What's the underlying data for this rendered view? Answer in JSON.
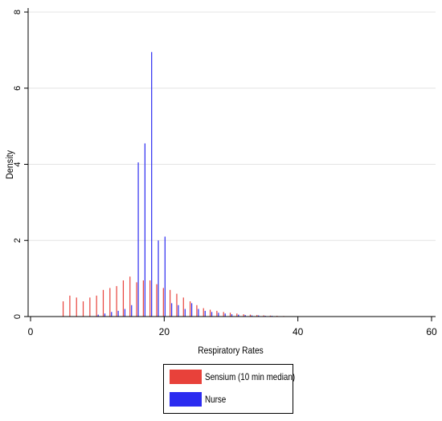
{
  "chart_data": {
    "type": "bar",
    "xlabel": "Respiratory Rates",
    "ylabel": "Density",
    "xlim": [
      0,
      60
    ],
    "ylim": [
      0,
      8
    ],
    "xticks": [
      0,
      20,
      40,
      60
    ],
    "yticks": [
      0,
      2,
      4,
      6,
      8
    ],
    "legend_position": "bottom",
    "series": [
      {
        "name": "Sensium (10 min median)",
        "color": "#e8413a",
        "x": [
          5,
          6,
          7,
          8,
          9,
          10,
          11,
          12,
          13,
          14,
          15,
          16,
          17,
          18,
          19,
          20,
          21,
          22,
          23,
          24,
          25,
          26,
          27,
          28,
          29,
          30,
          31,
          32,
          33,
          34,
          35,
          36,
          37,
          38,
          39,
          40
        ],
        "values": [
          0.4,
          0.55,
          0.5,
          0.4,
          0.5,
          0.55,
          0.7,
          0.75,
          0.8,
          0.95,
          1.05,
          0.9,
          0.95,
          0.95,
          0.85,
          0.75,
          0.7,
          0.6,
          0.5,
          0.4,
          0.3,
          0.22,
          0.18,
          0.15,
          0.12,
          0.1,
          0.08,
          0.06,
          0.05,
          0.04,
          0.03,
          0.025,
          0.02,
          0.015,
          0.01,
          0.01
        ]
      },
      {
        "name": "Nurse",
        "color": "#2b2bf0",
        "x": [
          10,
          11,
          12,
          13,
          14,
          15,
          16,
          17,
          18,
          19,
          20,
          21,
          22,
          23,
          24,
          25,
          26,
          27,
          28,
          29,
          30,
          31,
          32,
          33,
          34,
          35,
          36,
          37,
          38,
          39,
          40
        ],
        "values": [
          0.05,
          0.08,
          0.12,
          0.15,
          0.2,
          0.3,
          4.05,
          4.55,
          6.95,
          2.0,
          2.1,
          0.35,
          0.3,
          0.2,
          0.35,
          0.2,
          0.15,
          0.12,
          0.1,
          0.08,
          0.06,
          0.05,
          0.04,
          0.03,
          0.03,
          0.02,
          0.02,
          0.01,
          0.01,
          0.01,
          0.01
        ]
      }
    ]
  },
  "legend": {
    "items": [
      {
        "label": "Sensium (10 min median)",
        "color": "#e8413a"
      },
      {
        "label": "Nurse",
        "color": "#2b2bf0"
      }
    ]
  }
}
